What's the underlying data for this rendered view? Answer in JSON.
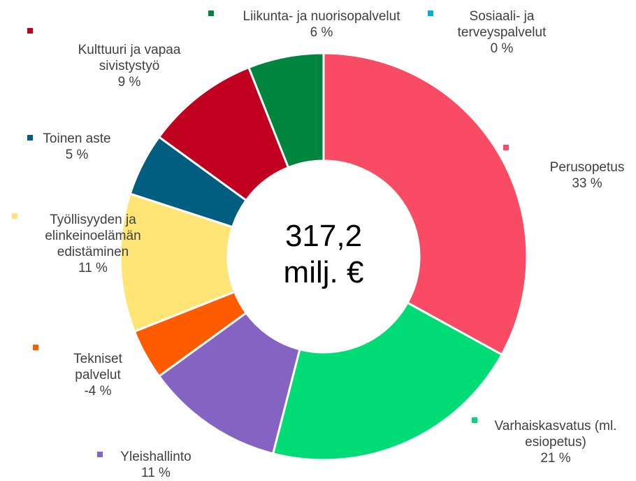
{
  "chart_data": {
    "type": "donut",
    "center_label": "317,2 milj. €",
    "categories": [
      "Perusopetus",
      "Varhaiskasvatus (ml. esiopetus)",
      "Yleishallinto",
      "Tekniset palvelut",
      "Työllisyyden ja elinkeinoelämän edistäminen",
      "Toinen aste",
      "Kulttuuri ja vapaa sivistystyö",
      "Liikunta- ja nuorisopalvelut",
      "Sosiaali- ja terveyspalvelut"
    ],
    "values": [
      33,
      21,
      11,
      -4,
      11,
      5,
      9,
      6,
      0
    ],
    "value_labels": [
      "33 %",
      "21 %",
      "11 %",
      "-4 %",
      "11 %",
      "5 %",
      "9 %",
      "6 %",
      "0 %"
    ],
    "colors": [
      "#f94c64",
      "#00dc75",
      "#8563c2",
      "#ff5b00",
      "#ffe575",
      "#005f80",
      "#c0001e",
      "#00853e",
      "#00b0d8"
    ]
  }
}
